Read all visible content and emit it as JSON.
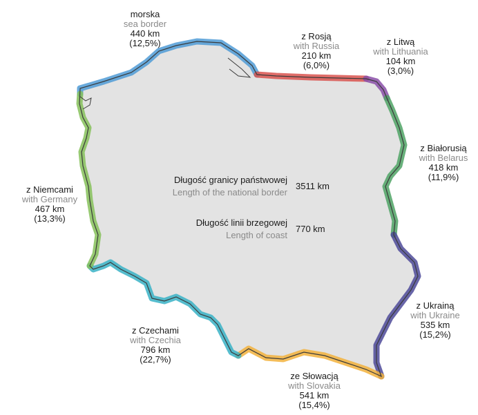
{
  "colors": {
    "land": "#e3e3e3",
    "outline": "#3a3a3a",
    "sea": "#4f9bd6",
    "russia": "#d9534f",
    "lithuania": "#8a4fa8",
    "belarus": "#4fa365",
    "ukraine": "#4e4a99",
    "slovakia": "#f2b23c",
    "czechia": "#38b2c6",
    "germany": "#86c15a"
  },
  "borders": [
    {
      "key": "sea",
      "pl": "morska",
      "en": "sea border",
      "km": "440 km",
      "pct": "(12,5%)"
    },
    {
      "key": "russia",
      "pl": "z Rosją",
      "en": "with Russia",
      "km": "210 km",
      "pct": "(6,0%)"
    },
    {
      "key": "lithuania",
      "pl": "z Litwą",
      "en": "with Lithuania",
      "km": "104 km",
      "pct": "(3,0%)"
    },
    {
      "key": "belarus",
      "pl": "z Białorusią",
      "en": "with Belarus",
      "km": "418 km",
      "pct": "(11,9%)"
    },
    {
      "key": "ukraine",
      "pl": "z Ukrainą",
      "en": "with Ukraine",
      "km": "535 km",
      "pct": "(15,2%)"
    },
    {
      "key": "slovakia",
      "pl": "ze Słowacją",
      "en": "with Slovakia",
      "km": "541 km",
      "pct": "(15,4%)"
    },
    {
      "key": "czechia",
      "pl": "z Czechami",
      "en": "with Czechia",
      "km": "796 km",
      "pct": "(22,7%)"
    },
    {
      "key": "germany",
      "pl": "z Niemcami",
      "en": "with Germany",
      "km": "467 km",
      "pct": "(13,3%)"
    }
  ],
  "stats": [
    {
      "pl": "Długość granicy państwowej",
      "en": "Length of the national border",
      "value": "3511 km"
    },
    {
      "pl": "Długość linii brzegowej",
      "en": "Length of coast",
      "value": "770 km"
    }
  ]
}
